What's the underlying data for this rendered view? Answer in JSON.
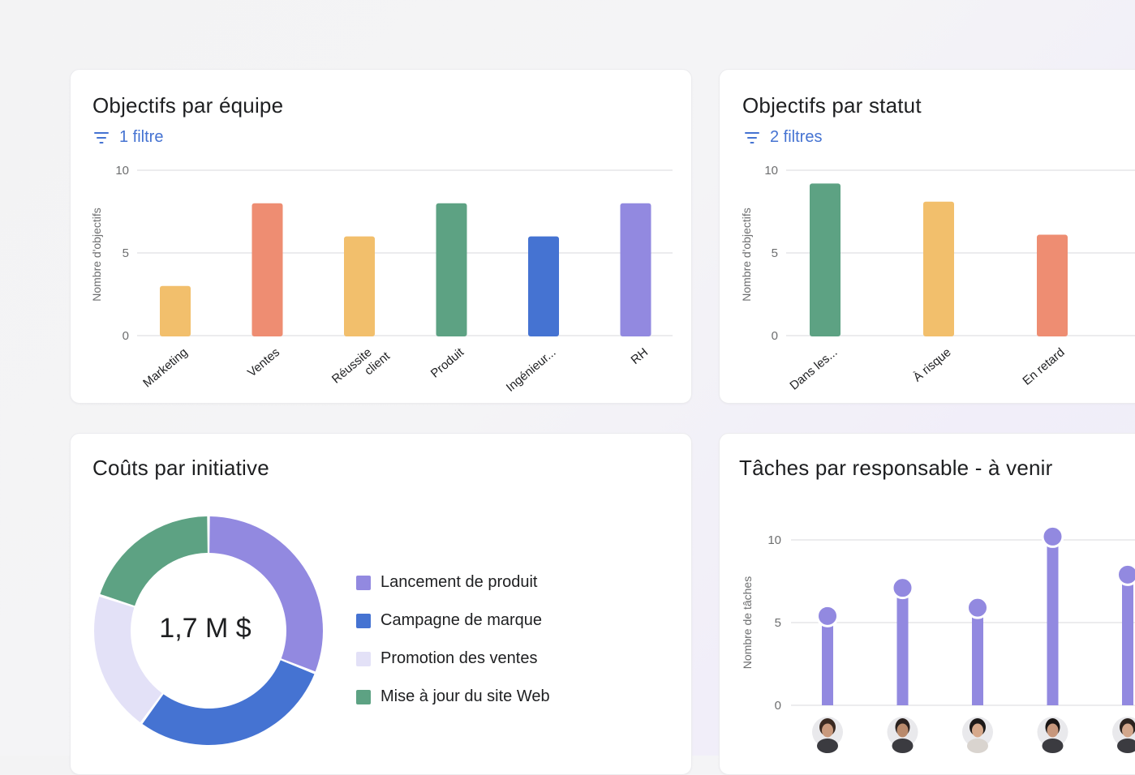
{
  "colors": {
    "purple": "#9289e0",
    "coral": "#ee8d72",
    "yellow": "#f2bf6c",
    "green": "#5da283",
    "blue": "#4573d2",
    "lavender": "#e3e1f7",
    "filter": "#4573d2"
  },
  "team_card": {
    "title": "Objectifs par équipe",
    "filter_label": "1 filtre",
    "filter_icon": "filter-icon"
  },
  "status_card": {
    "title": "Objectifs par statut",
    "filter_label": "2 filtres",
    "filter_icon": "filter-icon"
  },
  "cost_card": {
    "title": "Coûts par initiative",
    "total": "1,7 M $",
    "legend": [
      {
        "label": "Lancement de produit",
        "color": "#9289e0"
      },
      {
        "label": "Campagne de marque",
        "color": "#4573d2"
      },
      {
        "label": "Promotion des ventes",
        "color": "#e3e1f7"
      },
      {
        "label": "Mise à jour du site Web",
        "color": "#5da283"
      }
    ]
  },
  "tasks_card": {
    "title": "Tâches par responsable - à venir"
  },
  "chart_data": [
    {
      "type": "bar",
      "title": "Objectifs par équipe",
      "ylabel": "Nombre d'objectifs",
      "xlabel": "",
      "ylim": [
        0,
        10
      ],
      "yticks": [
        0,
        5,
        10
      ],
      "grid": true,
      "categories": [
        "Marketing",
        "Ventes",
        "Réussite client",
        "Produit",
        "Ingénieur...",
        "RH"
      ],
      "values": [
        3,
        8,
        6,
        8,
        6,
        8
      ],
      "colors": [
        "#f2bf6c",
        "#ee8d72",
        "#f2bf6c",
        "#5da283",
        "#4573d2",
        "#9289e0"
      ]
    },
    {
      "type": "bar",
      "title": "Objectifs par statut",
      "ylabel": "Nombre d'objectifs",
      "xlabel": "",
      "ylim": [
        0,
        10
      ],
      "yticks": [
        0,
        5,
        10
      ],
      "grid": true,
      "categories": [
        "Dans les...",
        "À risque",
        "En retard"
      ],
      "values": [
        9.2,
        8.1,
        6.1
      ],
      "colors": [
        "#5da283",
        "#f2bf6c",
        "#ee8d72"
      ]
    },
    {
      "type": "pie",
      "title": "Coûts par initiative",
      "center_label": "1,7 M $",
      "categories": [
        "Lancement de produit",
        "Campagne de marque",
        "Promotion des ventes",
        "Mise à jour du site Web"
      ],
      "values": [
        31,
        29,
        20,
        20
      ],
      "colors": [
        "#9289e0",
        "#4573d2",
        "#e3e1f7",
        "#5da283"
      ]
    },
    {
      "type": "bar",
      "title": "Tâches par responsable - à venir",
      "ylabel": "Nombre de tâches",
      "xlabel": "",
      "ylim": [
        0,
        10
      ],
      "yticks": [
        0,
        5,
        10
      ],
      "grid": true,
      "categories": [
        "avatar-1",
        "avatar-2",
        "avatar-3",
        "avatar-4",
        "avatar-5"
      ],
      "values": [
        5.4,
        7.1,
        5.9,
        10.2,
        7.9
      ],
      "colors": [
        "#9289e0",
        "#9289e0",
        "#9289e0",
        "#9289e0",
        "#9289e0"
      ]
    }
  ]
}
